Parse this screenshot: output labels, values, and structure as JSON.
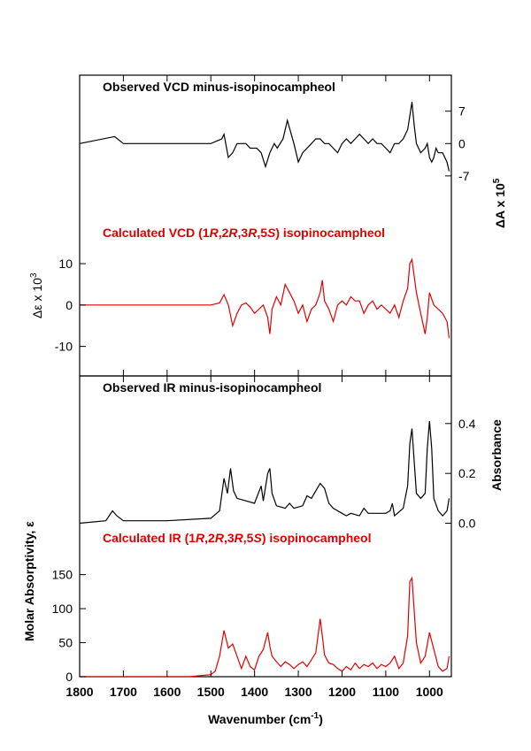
{
  "chart_data": [
    {
      "type": "line",
      "title": "Observed VCD minus-isopinocampheol",
      "ylabel": "ΔA x 10",
      "ylabel_sup": "5",
      "ylim": [
        -12,
        10
      ],
      "yticks": [
        "7",
        "0",
        "-7"
      ],
      "ytick_values": [
        7,
        0,
        -7
      ],
      "color": "#000000",
      "x": [
        1800,
        1720,
        1700,
        1600,
        1500,
        1475,
        1470,
        1460,
        1450,
        1440,
        1430,
        1420,
        1410,
        1395,
        1385,
        1375,
        1365,
        1355,
        1348,
        1335,
        1325,
        1310,
        1300,
        1290,
        1280,
        1270,
        1260,
        1250,
        1240,
        1230,
        1220,
        1210,
        1200,
        1190,
        1180,
        1170,
        1160,
        1150,
        1140,
        1130,
        1120,
        1110,
        1100,
        1090,
        1080,
        1070,
        1060,
        1050,
        1045,
        1040,
        1035,
        1030,
        1020,
        1010,
        1005,
        1000,
        995,
        990,
        985,
        980,
        970,
        960,
        955
      ],
      "y": [
        0,
        1.5,
        0,
        0,
        0,
        1,
        2,
        -3,
        -2,
        0,
        0,
        0,
        -1,
        -1,
        -2,
        -5,
        -2,
        0,
        -1,
        1,
        5,
        0,
        -4,
        -2,
        -1,
        0,
        1,
        1,
        0,
        0,
        -1,
        -2,
        0,
        1,
        0,
        1,
        2,
        1,
        0,
        1,
        0,
        0,
        -1,
        -2,
        0,
        0,
        1,
        3,
        6,
        9,
        4,
        0,
        -2,
        -1,
        0,
        -3,
        -4,
        -3,
        -1,
        -2,
        -2,
        -4,
        -6
      ]
    },
    {
      "type": "line",
      "title": "Calculated VCD (1R,2R,3R,5S) isopinocampheol",
      "title_parts": [
        {
          "t": "Calculated VCD (1",
          "i": false
        },
        {
          "t": "R",
          "i": true
        },
        {
          "t": ",2",
          "i": false
        },
        {
          "t": "R",
          "i": true
        },
        {
          "t": ",3",
          "i": false
        },
        {
          "t": "R",
          "i": true
        },
        {
          "t": ",5",
          "i": false
        },
        {
          "t": "S",
          "i": true
        },
        {
          "t": ") isopinocampheol",
          "i": false
        }
      ],
      "ylabel": "Δε x 10",
      "ylabel_sup": "3",
      "ylim": [
        -15,
        16
      ],
      "yticks": [
        "10",
        "0",
        "-10"
      ],
      "ytick_values": [
        10,
        0,
        -10
      ],
      "color": "#e00000",
      "x": [
        1800,
        1500,
        1480,
        1470,
        1460,
        1450,
        1440,
        1430,
        1420,
        1410,
        1400,
        1390,
        1380,
        1370,
        1365,
        1360,
        1350,
        1340,
        1330,
        1320,
        1310,
        1300,
        1290,
        1280,
        1270,
        1260,
        1250,
        1245,
        1240,
        1230,
        1220,
        1210,
        1200,
        1190,
        1180,
        1170,
        1160,
        1150,
        1140,
        1130,
        1120,
        1110,
        1100,
        1090,
        1080,
        1070,
        1060,
        1050,
        1045,
        1040,
        1030,
        1020,
        1010,
        1005,
        1000,
        990,
        980,
        970,
        960,
        955
      ],
      "y": [
        0,
        0,
        0.5,
        2.5,
        0,
        -5,
        -2,
        0,
        0.5,
        -0.5,
        -2,
        -1,
        0,
        -3,
        -7,
        -1,
        2,
        0,
        5,
        3,
        1,
        -2,
        0,
        -4,
        -1,
        0,
        3,
        6,
        1,
        -1,
        -4,
        0,
        1,
        0,
        2,
        1,
        1,
        -2,
        0,
        1,
        -1,
        0,
        -1,
        -2,
        0,
        -3,
        1,
        4,
        10,
        11,
        3,
        -2,
        -7,
        -3,
        3,
        0,
        -1,
        -2,
        -4,
        -8
      ]
    },
    {
      "type": "line",
      "title": "Observed IR minus-isopinocampheol",
      "ylabel": "Absorbance",
      "ylim": [
        -0.03,
        0.52
      ],
      "yticks": [
        "0.4",
        "0.2",
        "0.0"
      ],
      "ytick_values": [
        0.4,
        0.2,
        0.0
      ],
      "color": "#000000",
      "x": [
        1800,
        1740,
        1725,
        1715,
        1700,
        1600,
        1500,
        1480,
        1470,
        1462,
        1455,
        1448,
        1440,
        1420,
        1400,
        1385,
        1380,
        1370,
        1365,
        1360,
        1350,
        1330,
        1320,
        1310,
        1290,
        1280,
        1270,
        1260,
        1250,
        1240,
        1230,
        1220,
        1200,
        1190,
        1180,
        1160,
        1150,
        1140,
        1120,
        1100,
        1090,
        1085,
        1080,
        1060,
        1050,
        1045,
        1040,
        1035,
        1030,
        1020,
        1010,
        1005,
        1000,
        995,
        990,
        980,
        970,
        960,
        955
      ],
      "y": [
        0,
        0.01,
        0.05,
        0.03,
        0.01,
        0.01,
        0.02,
        0.05,
        0.18,
        0.12,
        0.22,
        0.13,
        0.1,
        0.09,
        0.08,
        0.15,
        0.09,
        0.2,
        0.22,
        0.12,
        0.07,
        0.06,
        0.08,
        0.06,
        0.07,
        0.11,
        0.1,
        0.13,
        0.16,
        0.14,
        0.08,
        0.06,
        0.04,
        0.03,
        0.04,
        0.03,
        0.06,
        0.04,
        0.04,
        0.04,
        0.05,
        0.08,
        0.03,
        0.06,
        0.15,
        0.32,
        0.38,
        0.25,
        0.12,
        0.1,
        0.12,
        0.3,
        0.41,
        0.3,
        0.1,
        0.05,
        0.03,
        0.05,
        0.1
      ]
    },
    {
      "type": "line",
      "title": "Calculated IR  (1R,2R,3R,5S) isopinocampheol",
      "title_parts": [
        {
          "t": "Calculated IR  (1",
          "i": false
        },
        {
          "t": "R",
          "i": true
        },
        {
          "t": ",2",
          "i": false
        },
        {
          "t": "R",
          "i": true
        },
        {
          "t": ",3",
          "i": false
        },
        {
          "t": "R",
          "i": true
        },
        {
          "t": ",5",
          "i": false
        },
        {
          "t": "S",
          "i": true
        },
        {
          "t": ") isopinocampheol",
          "i": false
        }
      ],
      "ylabel": "Molar Absorptivity, ε",
      "ylim": [
        0,
        195
      ],
      "yticks": [
        "150",
        "100",
        "50",
        "0"
      ],
      "ytick_values": [
        150,
        100,
        50,
        0
      ],
      "color": "#e00000",
      "x": [
        1800,
        1550,
        1500,
        1490,
        1480,
        1470,
        1460,
        1450,
        1440,
        1430,
        1420,
        1410,
        1400,
        1390,
        1380,
        1370,
        1365,
        1360,
        1350,
        1340,
        1330,
        1320,
        1310,
        1300,
        1290,
        1280,
        1270,
        1260,
        1250,
        1245,
        1240,
        1230,
        1220,
        1210,
        1200,
        1190,
        1180,
        1170,
        1160,
        1150,
        1140,
        1130,
        1120,
        1110,
        1100,
        1090,
        1080,
        1070,
        1060,
        1050,
        1045,
        1040,
        1030,
        1020,
        1010,
        1000,
        990,
        980,
        970,
        960,
        955
      ],
      "y": [
        0,
        0,
        3,
        8,
        30,
        68,
        42,
        48,
        30,
        12,
        30,
        15,
        10,
        30,
        40,
        65,
        45,
        30,
        22,
        15,
        22,
        18,
        12,
        18,
        22,
        15,
        25,
        35,
        85,
        60,
        32,
        20,
        18,
        12,
        8,
        15,
        10,
        20,
        12,
        18,
        15,
        20,
        12,
        18,
        15,
        20,
        30,
        12,
        20,
        60,
        140,
        145,
        50,
        20,
        30,
        65,
        40,
        15,
        8,
        12,
        30
      ]
    }
  ],
  "x_axis": {
    "label": "Wavenumber (cm",
    "label_sup": "-1",
    "label_end": ")",
    "ticks": [
      "1800",
      "1700",
      "1600",
      "1500",
      "1400",
      "1300",
      "1200",
      "1100",
      "1000"
    ],
    "tick_values": [
      1800,
      1700,
      1600,
      1500,
      1400,
      1300,
      1200,
      1100,
      1000
    ],
    "xlim": [
      1800,
      950
    ]
  }
}
